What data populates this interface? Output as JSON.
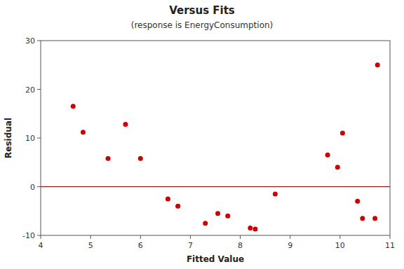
{
  "chart_data": {
    "type": "scatter",
    "title": "Versus Fits",
    "subtitle": "(response is EnergyConsumption)",
    "xlabel": "Fitted Value",
    "ylabel": "Residual",
    "x": [
      4.65,
      4.85,
      5.35,
      5.7,
      6.0,
      6.55,
      6.75,
      7.3,
      7.55,
      7.75,
      8.2,
      8.3,
      8.7,
      9.75,
      9.95,
      10.05,
      10.35,
      10.45,
      10.7,
      10.75
    ],
    "values": [
      16.5,
      11.2,
      5.8,
      12.8,
      5.8,
      -2.5,
      -4.0,
      -7.5,
      -5.5,
      -6.0,
      -8.5,
      -8.7,
      -1.5,
      6.5,
      4.0,
      11.0,
      -3.0,
      -6.5,
      -6.5,
      25.0
    ],
    "color": "#cc0000",
    "hline": {
      "y": 0,
      "color": "#880000"
    },
    "xlim": [
      4.0,
      11.0
    ],
    "ylim": [
      -10,
      30
    ],
    "xticks": [
      4,
      5,
      6,
      7,
      8,
      9,
      10,
      11
    ],
    "yticks": [
      -10,
      0,
      10,
      20,
      30
    ],
    "grid": false
  }
}
